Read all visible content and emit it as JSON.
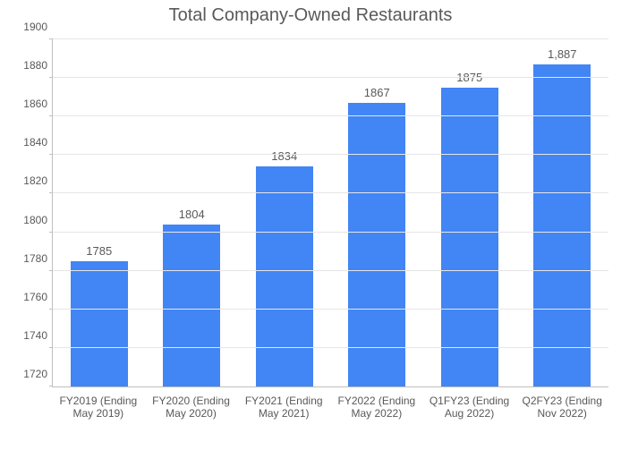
{
  "chart": {
    "type": "bar",
    "title": "Total Company-Owned Restaurants",
    "title_fontsize": 20,
    "title_color": "#595959",
    "background_color": "#ffffff",
    "axis_color": "#bfbfbf",
    "grid_color": "#e6e6e6",
    "tick_label_color": "#595959",
    "tick_fontsize": 12,
    "value_label_fontsize": 13,
    "xlabel_fontsize": 12,
    "bar_color": "#4285f4",
    "bar_width_ratio": 0.62,
    "ylim_min": 1720,
    "ylim_max": 1900,
    "ytick_step": 20,
    "categories": [
      "FY2019 (Ending May 2019)",
      "FY2020 (Ending May 2020)",
      "FY2021 (Ending May 2021)",
      "FY2022 (Ending May 2022)",
      "Q1FY23 (Ending Aug 2022)",
      "Q2FY23 (Ending Nov 2022)"
    ],
    "values": [
      1785,
      1804,
      1834,
      1867,
      1875,
      1887
    ],
    "value_labels": [
      "1785",
      "1804",
      "1834",
      "1867",
      "1875",
      "1,887"
    ]
  }
}
